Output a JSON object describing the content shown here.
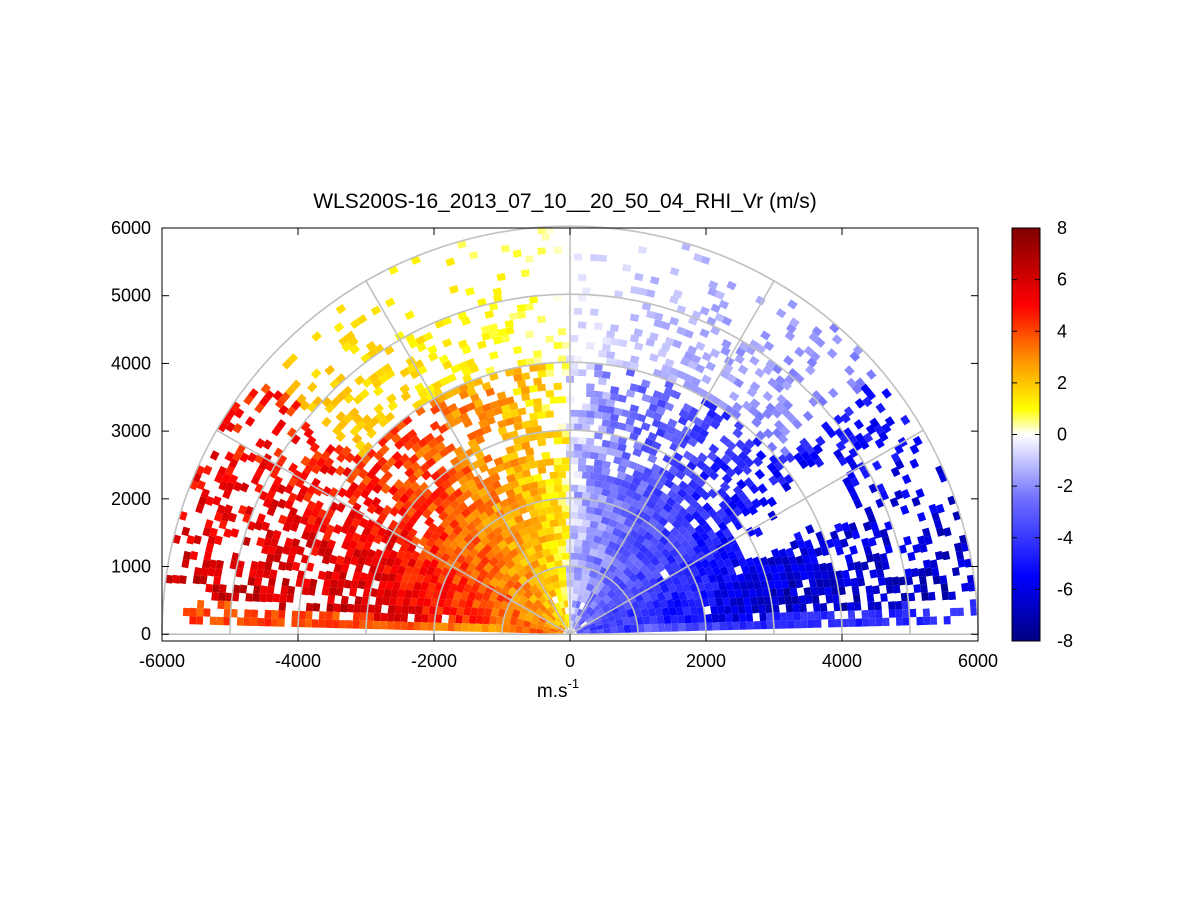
{
  "chart_data": {
    "type": "heatmap",
    "subtype": "polar-rhi-sector",
    "title": "WLS200S-16_2013_07_10__20_50_04_RHI_Vr (m/s)",
    "xlabel": "m.s",
    "xlabel_superscript": "-1",
    "ylabel": "",
    "xlim": [
      -6000,
      6000
    ],
    "ylim": [
      -100,
      6000
    ],
    "x_ticks": [
      -6000,
      -4000,
      -2000,
      0,
      2000,
      4000,
      6000
    ],
    "x_tick_labels": [
      "-6000",
      "-4000",
      "-2000",
      "0",
      "2000",
      "4000",
      "6000"
    ],
    "y_ticks": [
      0,
      1000,
      2000,
      3000,
      4000,
      5000,
      6000
    ],
    "y_tick_labels": [
      "0",
      "1000",
      "2000",
      "3000",
      "4000",
      "5000",
      "6000"
    ],
    "grid": true,
    "polar_grid": {
      "range_rings": [
        1000,
        2000,
        3000,
        4000,
        5000,
        6000
      ],
      "radial_lines_deg": [
        0,
        30,
        60,
        90,
        120,
        150,
        180
      ]
    },
    "colorbar": {
      "range": [
        -8,
        8
      ],
      "ticks": [
        8,
        6,
        4,
        2,
        0,
        -2,
        -4,
        -6,
        -8
      ],
      "tick_labels": [
        "8",
        "6",
        "4",
        "2",
        "0",
        "-2",
        "-4",
        "-6",
        "-8"
      ],
      "colormap": [
        {
          "v": -8,
          "color": "#000080"
        },
        {
          "v": -5.5,
          "color": "#0000ff"
        },
        {
          "v": -2.5,
          "color": "#6f6fff"
        },
        {
          "v": 0,
          "color": "#ffffff"
        },
        {
          "v": 1,
          "color": "#ffff00"
        },
        {
          "v": 3,
          "color": "#ff8c00"
        },
        {
          "v": 5,
          "color": "#ff0000"
        },
        {
          "v": 8,
          "color": "#800000"
        }
      ]
    },
    "scan": {
      "elevation_min_deg": 1.5,
      "elevation_max_deg": 178.5,
      "max_range_m": 6000,
      "description_values": {
        "left_half_velocity_range_ms": [
          0.5,
          7.5
        ],
        "right_half_velocity_range_ms": [
          -7.5,
          -0.5
        ]
      }
    },
    "colors": {
      "grid": "#c0c0c0",
      "axes": "#000000"
    }
  }
}
